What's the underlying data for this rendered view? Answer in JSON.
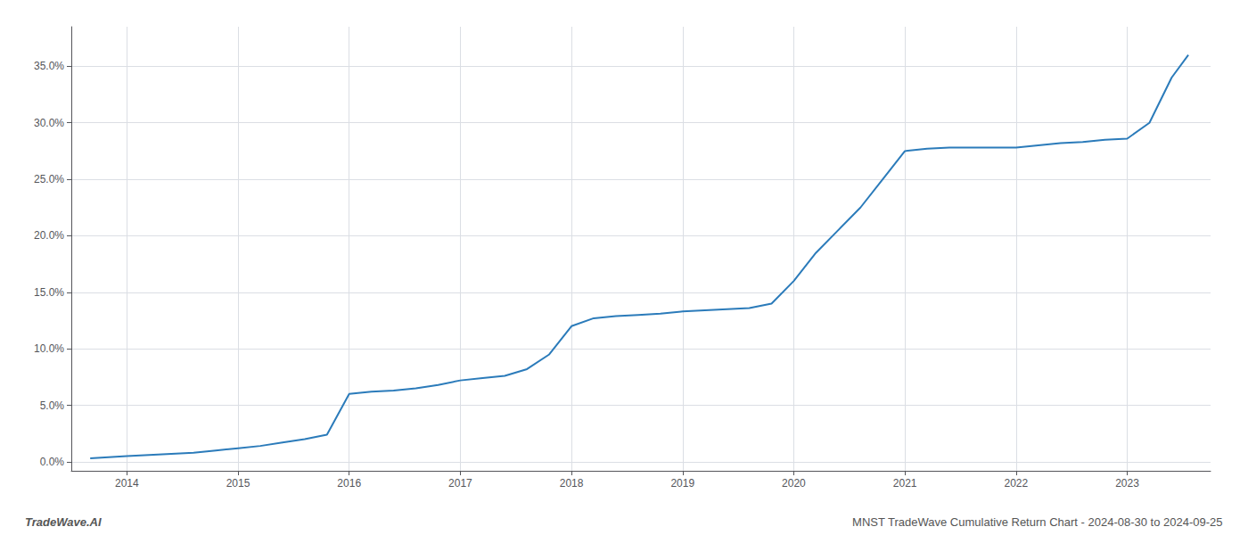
{
  "chart_data": {
    "type": "line",
    "x": [
      2013.67,
      2014.0,
      2014.2,
      2014.4,
      2014.6,
      2014.8,
      2015.0,
      2015.2,
      2015.4,
      2015.6,
      2015.8,
      2016.0,
      2016.2,
      2016.4,
      2016.6,
      2016.8,
      2017.0,
      2017.2,
      2017.4,
      2017.6,
      2017.8,
      2018.0,
      2018.2,
      2018.4,
      2018.6,
      2018.8,
      2019.0,
      2019.2,
      2019.4,
      2019.6,
      2019.8,
      2020.0,
      2020.2,
      2020.4,
      2020.6,
      2020.8,
      2021.0,
      2021.2,
      2021.4,
      2021.6,
      2021.8,
      2022.0,
      2022.2,
      2022.4,
      2022.6,
      2022.8,
      2023.0,
      2023.2,
      2023.4,
      2023.55
    ],
    "values": [
      0.003,
      0.005,
      0.006,
      0.007,
      0.008,
      0.01,
      0.012,
      0.014,
      0.017,
      0.02,
      0.024,
      0.06,
      0.062,
      0.063,
      0.065,
      0.068,
      0.072,
      0.074,
      0.076,
      0.082,
      0.095,
      0.12,
      0.127,
      0.129,
      0.13,
      0.131,
      0.133,
      0.134,
      0.135,
      0.136,
      0.14,
      0.16,
      0.185,
      0.205,
      0.225,
      0.25,
      0.275,
      0.277,
      0.278,
      0.278,
      0.278,
      0.278,
      0.28,
      0.282,
      0.283,
      0.285,
      0.286,
      0.3,
      0.34,
      0.36
    ],
    "color": "#2b7bba",
    "xlim": [
      2013.5,
      2023.75
    ],
    "ylim": [
      -0.008,
      0.385
    ],
    "xticks": [
      2014,
      2015,
      2016,
      2017,
      2018,
      2019,
      2020,
      2021,
      2022,
      2023
    ],
    "yticks": [
      {
        "value": 0.0,
        "label": "0.0%"
      },
      {
        "value": 0.05,
        "label": "5.0%"
      },
      {
        "value": 0.1,
        "label": "10.0%"
      },
      {
        "value": 0.15,
        "label": "15.0%"
      },
      {
        "value": 0.2,
        "label": "20.0%"
      },
      {
        "value": 0.25,
        "label": "25.0%"
      },
      {
        "value": 0.3,
        "label": "30.0%"
      },
      {
        "value": 0.35,
        "label": "35.0%"
      }
    ],
    "grid": true,
    "annotations": [
      "TradeWave.AI",
      "MNST TradeWave Cumulative Return Chart - 2024-08-30 to 2024-09-25"
    ]
  }
}
